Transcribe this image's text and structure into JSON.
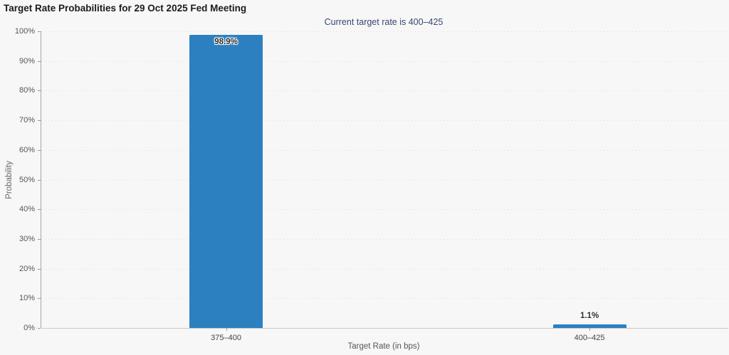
{
  "chart_data": {
    "type": "bar",
    "title": "Target Rate Probabilities for 29 Oct 2025 Fed Meeting",
    "subtitle": "Current target rate is 400–425",
    "categories": [
      "375–400",
      "400–425"
    ],
    "values": [
      98.9,
      1.1
    ],
    "value_labels": [
      "98.9%",
      "1.1%"
    ],
    "xlabel": "Target Rate (in bps)",
    "ylabel": "Probability",
    "ylim": [
      0,
      100
    ],
    "ytick_step": 10,
    "ytick_labels": [
      "0%",
      "10%",
      "20%",
      "30%",
      "40%",
      "50%",
      "60%",
      "70%",
      "80%",
      "90%",
      "100%"
    ],
    "grid": "horizontal dotted",
    "legend": "none",
    "bar_color": "#2d80bf",
    "subtitle_color": "#36486f"
  }
}
